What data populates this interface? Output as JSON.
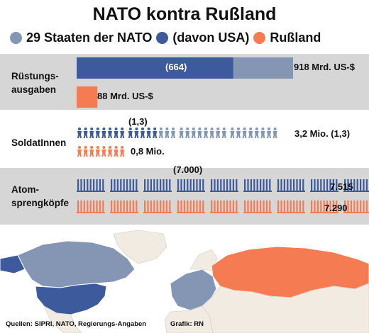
{
  "title": "NATO kontra Rußland",
  "legend": [
    {
      "label": "29 Staaten der NATO",
      "color": "#8596b5"
    },
    {
      "label": "(davon USA)",
      "color": "#3d5a9c"
    },
    {
      "label": "Rußland",
      "color": "#f47b52"
    }
  ],
  "colors": {
    "nato": "#8596b5",
    "usa": "#3d5a9c",
    "russia": "#f47b52",
    "band": "#d6d6d6",
    "land": "#f1ebe2",
    "water": "#ffffff"
  },
  "chart_data": [
    {
      "type": "bar",
      "label": "Rüstungs-\nausgaben",
      "series": [
        {
          "name": "29 Staaten der NATO",
          "values": [
            918
          ],
          "value_label": "918 Mrd. US-$"
        },
        {
          "name": "(davon USA)",
          "values": [
            664
          ],
          "value_label": "(664)"
        },
        {
          "name": "Rußland",
          "values": [
            88
          ],
          "value_label": "88 Mrd. US-$"
        }
      ]
    },
    {
      "type": "bar",
      "label": "SoldatInnen",
      "series": [
        {
          "name": "29 Staaten der NATO",
          "values": [
            3.2
          ],
          "value_label": "3,2 Mio. (1,3)"
        },
        {
          "name": "(davon USA)",
          "values": [
            1.3
          ],
          "value_label": "(1,3)"
        },
        {
          "name": "Rußland",
          "values": [
            0.8
          ],
          "value_label": "0,8 Mio."
        }
      ]
    },
    {
      "type": "bar",
      "label": "Atom-\nsprengköpfe",
      "series": [
        {
          "name": "29 Staaten der NATO",
          "values": [
            7515
          ],
          "value_label": "7.515"
        },
        {
          "name": "(davon USA)",
          "values": [
            7000
          ],
          "value_label": "(7.000)"
        },
        {
          "name": "Rußland",
          "values": [
            7290
          ],
          "value_label": "7.290"
        }
      ]
    }
  ],
  "sources": "Quellen: SIPRI, NATO, Regierungs-Angaben",
  "credit": "Grafik: RN"
}
